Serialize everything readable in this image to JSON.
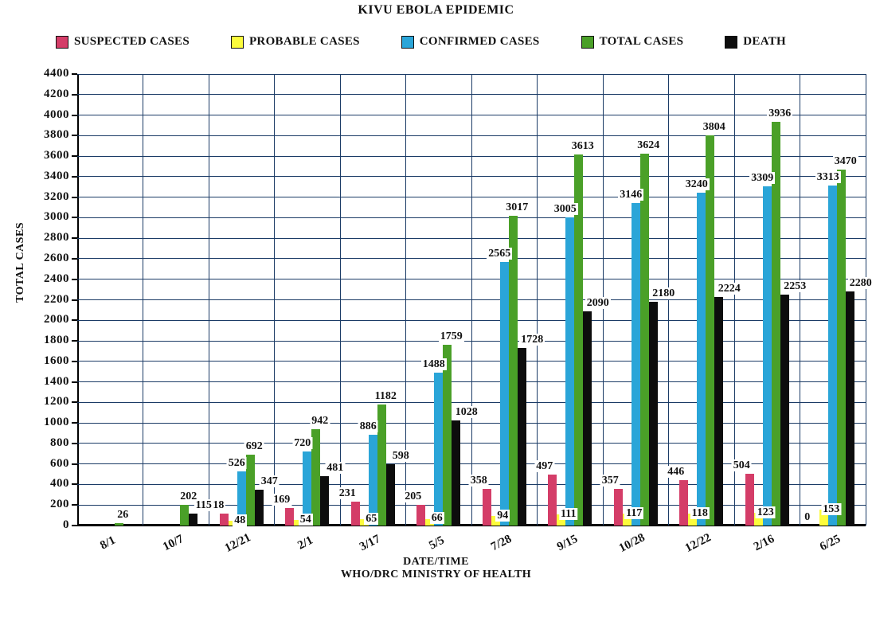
{
  "chart_data": {
    "type": "bar",
    "title": "KIVU EBOLA EPIDEMIC",
    "xlabel": "DATE/TIME",
    "xlabel_sub": "WHO/DRC MINISTRY OF HEALTH",
    "ylabel": "TOTAL CASES",
    "ylim": [
      0,
      4400
    ],
    "ytick_step": 200,
    "grid": true,
    "legend_position": "top",
    "grid_color": "#1b3b66",
    "categories": [
      "8/1",
      "10/7",
      "12/21",
      "2/1",
      "3/17",
      "5/5",
      "7/28",
      "9/15",
      "10/28",
      "12/22",
      "2/16",
      "6/25"
    ],
    "series": [
      {
        "name": "SUSPECTED CASES",
        "color": "#d43d68",
        "values": [
          null,
          null,
          118,
          169,
          231,
          205,
          358,
          497,
          357,
          446,
          504,
          0
        ]
      },
      {
        "name": "PROBABLE CASES",
        "color": "#fcfc3c",
        "values": [
          null,
          null,
          48,
          54,
          65,
          66,
          94,
          111,
          117,
          118,
          123,
          153
        ]
      },
      {
        "name": "CONFIRMED CASES",
        "color": "#2aa5d8",
        "values": [
          null,
          null,
          526,
          720,
          886,
          1488,
          2565,
          3005,
          3146,
          3240,
          3309,
          3313
        ]
      },
      {
        "name": "TOTAL CASES",
        "color": "#4aa028",
        "values": [
          26,
          202,
          692,
          942,
          1182,
          1759,
          3017,
          3613,
          3624,
          3804,
          3936,
          3470
        ]
      },
      {
        "name": "DEATH",
        "color": "#0d0d0d",
        "values": [
          null,
          115,
          347,
          481,
          598,
          1028,
          1728,
          2090,
          2180,
          2224,
          2253,
          2280
        ]
      }
    ]
  }
}
